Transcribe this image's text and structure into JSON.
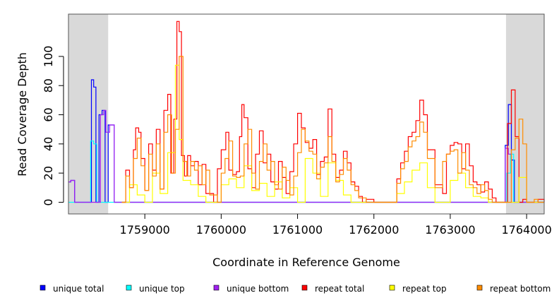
{
  "chart_data": {
    "type": "line",
    "xlabel": "Coordinate in Reference Genome",
    "ylabel": "Read Coverage Depth",
    "xlim": [
      1758000,
      1764230
    ],
    "ylim": [
      -8,
      129
    ],
    "x_ticks": [
      1759000,
      1760000,
      1761000,
      1762000,
      1763000,
      1764000
    ],
    "x_tick_labels": [
      "1759000",
      "1760000",
      "1761000",
      "1762000",
      "1763000",
      "1764000"
    ],
    "y_ticks": [
      0,
      20,
      40,
      60,
      80,
      100
    ],
    "y_tick_labels": [
      "0",
      "20",
      "40",
      "60",
      "80",
      "100"
    ],
    "flank_regions": [
      [
        1758000,
        1758520
      ],
      [
        1763730,
        1764230
      ]
    ],
    "legend_position": "bottom",
    "series": [
      {
        "name": "unique total",
        "color": "#0000ff",
        "x": [
          1758000,
          1758030,
          1758080,
          1758250,
          1758300,
          1758330,
          1758360,
          1758400,
          1758440,
          1758480,
          1758520,
          1758600,
          1763700,
          1763720,
          1763760,
          1763800,
          1763840,
          1763900,
          1764230
        ],
        "y": [
          14,
          15,
          0,
          0,
          84,
          79,
          0,
          60,
          63,
          0,
          53,
          0,
          0,
          39,
          67,
          29,
          0,
          0,
          0
        ]
      },
      {
        "name": "unique top",
        "color": "#00ffff",
        "x": [
          1758000,
          1758250,
          1758290,
          1758330,
          1758370,
          1763700,
          1763740,
          1763790,
          1763830,
          1764230
        ],
        "y": [
          0,
          0,
          42,
          40,
          0,
          0,
          20,
          33,
          0,
          0
        ]
      },
      {
        "name": "unique bottom",
        "color": "#a020f0",
        "x": [
          1758000,
          1758030,
          1758080,
          1758390,
          1758420,
          1758460,
          1758490,
          1758540,
          1758600,
          1763700,
          1763720,
          1763760,
          1763800,
          1764230
        ],
        "y": [
          14,
          15,
          0,
          0,
          60,
          63,
          48,
          53,
          0,
          0,
          37,
          33,
          0,
          0
        ]
      },
      {
        "name": "repeat total",
        "color": "#ff0000",
        "x": [
          1758700,
          1758750,
          1758800,
          1758850,
          1758880,
          1758920,
          1758950,
          1759000,
          1759050,
          1759100,
          1759150,
          1759200,
          1759250,
          1759300,
          1759340,
          1759380,
          1759420,
          1759450,
          1759480,
          1759520,
          1759560,
          1759600,
          1759650,
          1759700,
          1759750,
          1759800,
          1759850,
          1759900,
          1759950,
          1760000,
          1760060,
          1760100,
          1760150,
          1760200,
          1760240,
          1760270,
          1760300,
          1760350,
          1760400,
          1760450,
          1760500,
          1760550,
          1760600,
          1760650,
          1760700,
          1760750,
          1760800,
          1760850,
          1760900,
          1760950,
          1761000,
          1761050,
          1761100,
          1761150,
          1761200,
          1761250,
          1761300,
          1761350,
          1761400,
          1761450,
          1761500,
          1761550,
          1761600,
          1761650,
          1761700,
          1761750,
          1761800,
          1761850,
          1761900,
          1762000,
          1762100,
          1762200,
          1762300,
          1762350,
          1762400,
          1762450,
          1762500,
          1762550,
          1762600,
          1762650,
          1762700,
          1762800,
          1762900,
          1762950,
          1763000,
          1763050,
          1763100,
          1763150,
          1763200,
          1763250,
          1763300,
          1763350,
          1763400,
          1763450,
          1763500,
          1763550,
          1763600,
          1763650,
          1763700,
          1763750,
          1763800,
          1763850,
          1763900,
          1763950,
          1764000,
          1764100,
          1764150,
          1764230
        ],
        "y": [
          0,
          22,
          10,
          36,
          51,
          48,
          30,
          8,
          40,
          22,
          50,
          9,
          63,
          74,
          20,
          57,
          124,
          117,
          32,
          18,
          32,
          25,
          28,
          12,
          26,
          6,
          6,
          0,
          23,
          36,
          48,
          22,
          19,
          21,
          45,
          67,
          58,
          23,
          10,
          33,
          49,
          27,
          33,
          14,
          9,
          28,
          17,
          6,
          21,
          40,
          61,
          51,
          41,
          37,
          43,
          19,
          28,
          31,
          64,
          33,
          17,
          22,
          35,
          27,
          14,
          11,
          4,
          0,
          2,
          0,
          0,
          0,
          16,
          27,
          35,
          45,
          48,
          56,
          70,
          60,
          36,
          12,
          6,
          33,
          39,
          41,
          40,
          23,
          40,
          25,
          14,
          12,
          7,
          14,
          9,
          3,
          0,
          0,
          0,
          54,
          77,
          45,
          0,
          2,
          0,
          0,
          2,
          0
        ]
      },
      {
        "name": "repeat top",
        "color": "#ffff00",
        "x": [
          1758700,
          1758800,
          1758900,
          1759000,
          1759100,
          1759200,
          1759300,
          1759400,
          1759450,
          1759500,
          1759600,
          1759700,
          1759800,
          1759900,
          1760000,
          1760100,
          1760200,
          1760300,
          1760400,
          1760500,
          1760600,
          1760700,
          1760800,
          1760900,
          1761000,
          1761100,
          1761200,
          1761300,
          1761400,
          1761500,
          1761600,
          1761700,
          1762300,
          1762400,
          1762500,
          1762600,
          1762700,
          1762800,
          1762900,
          1763000,
          1763100,
          1763200,
          1763300,
          1763400,
          1763500,
          1763900,
          1764000,
          1764230
        ],
        "y": [
          0,
          12,
          5,
          0,
          20,
          6,
          34,
          94,
          43,
          15,
          12,
          4,
          0,
          0,
          12,
          16,
          10,
          25,
          8,
          13,
          4,
          14,
          3,
          10,
          0,
          30,
          20,
          4,
          27,
          15,
          5,
          0,
          6,
          14,
          22,
          27,
          10,
          0,
          0,
          15,
          20,
          10,
          4,
          3,
          0,
          17,
          0,
          0
        ]
      },
      {
        "name": "repeat bottom",
        "color": "#ff8c00",
        "x": [
          1758700,
          1758750,
          1758800,
          1758850,
          1758900,
          1758950,
          1759000,
          1759050,
          1759100,
          1759150,
          1759200,
          1759250,
          1759300,
          1759350,
          1759400,
          1759450,
          1759500,
          1759550,
          1759600,
          1759650,
          1759700,
          1759750,
          1759800,
          1759850,
          1759900,
          1759950,
          1760000,
          1760050,
          1760100,
          1760150,
          1760200,
          1760250,
          1760300,
          1760350,
          1760400,
          1760450,
          1760500,
          1760550,
          1760600,
          1760650,
          1760700,
          1760750,
          1760800,
          1760850,
          1760900,
          1760950,
          1761000,
          1761050,
          1761100,
          1761150,
          1761200,
          1761250,
          1761300,
          1761350,
          1761400,
          1761450,
          1761500,
          1761550,
          1761600,
          1761650,
          1761700,
          1761750,
          1761800,
          1761900,
          1762300,
          1762350,
          1762400,
          1762450,
          1762500,
          1762550,
          1762600,
          1762650,
          1762700,
          1762800,
          1762900,
          1762950,
          1763000,
          1763050,
          1763100,
          1763150,
          1763200,
          1763250,
          1763300,
          1763350,
          1763400,
          1763450,
          1763500,
          1763550,
          1763750,
          1763800,
          1763850,
          1763900,
          1763950,
          1764000,
          1764100,
          1764150,
          1764230
        ],
        "y": [
          0,
          18,
          10,
          30,
          44,
          25,
          8,
          33,
          18,
          40,
          9,
          48,
          60,
          20,
          50,
          100,
          28,
          18,
          28,
          22,
          25,
          12,
          22,
          5,
          5,
          0,
          20,
          30,
          42,
          18,
          17,
          18,
          40,
          50,
          20,
          9,
          28,
          40,
          22,
          28,
          12,
          9,
          24,
          15,
          5,
          18,
          34,
          50,
          42,
          35,
          33,
          16,
          24,
          27,
          45,
          28,
          14,
          19,
          30,
          22,
          12,
          8,
          3,
          0,
          13,
          23,
          28,
          38,
          42,
          45,
          55,
          48,
          30,
          10,
          28,
          33,
          35,
          36,
          20,
          34,
          22,
          12,
          10,
          6,
          12,
          8,
          2,
          0,
          0,
          36,
          44,
          57,
          40,
          0,
          2,
          0,
          0
        ]
      }
    ]
  }
}
